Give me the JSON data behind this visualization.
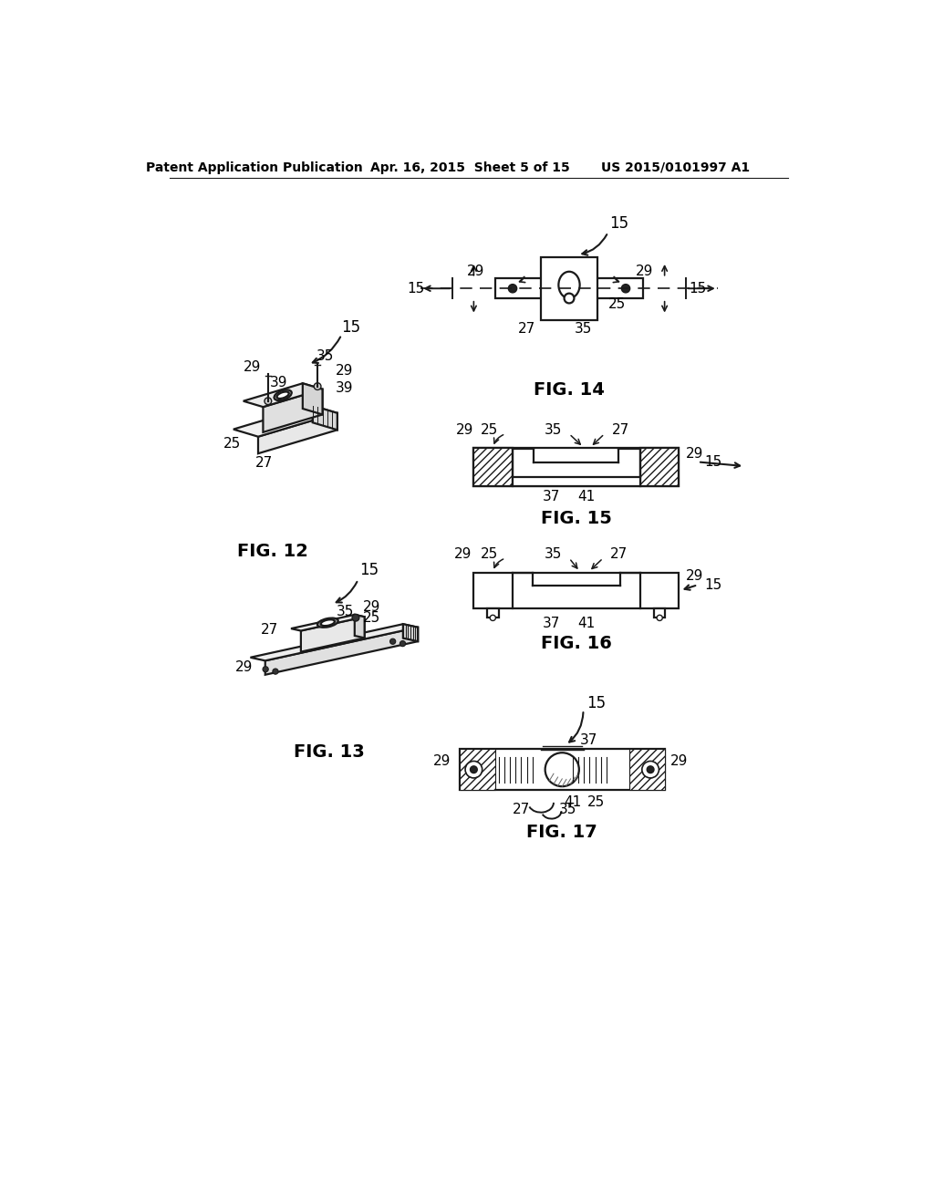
{
  "bg_color": "#ffffff",
  "text_color": "#000000",
  "line_color": "#1a1a1a",
  "header_left": "Patent Application Publication",
  "header_mid": "Apr. 16, 2015  Sheet 5 of 15",
  "header_right": "US 2015/0101997 A1"
}
